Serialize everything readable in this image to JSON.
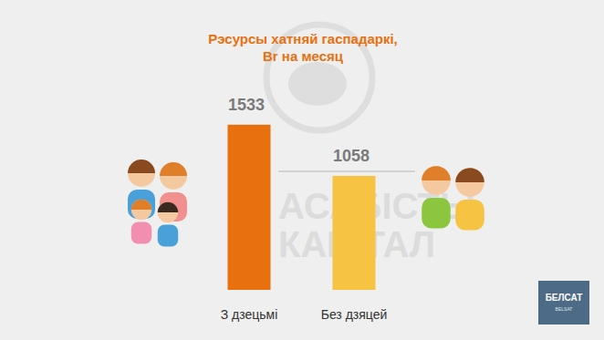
{
  "chart_data": {
    "type": "bar",
    "title": "Рэсурсы хатняй гаспадаркі, Br на месяц",
    "categories": [
      "З дзецьмі",
      "Без дзяцей"
    ],
    "values": [
      1533,
      1058
    ],
    "colors": [
      "#e8700e",
      "#f6c342"
    ],
    "ylim": [
      0,
      1650
    ],
    "data_labels": true,
    "tick_labels": "x",
    "grid": false
  },
  "watermark": "АСАБІСТЫ КАПІТАЛ",
  "logo": "БЕЛСАТ",
  "logo_sub": "BELSAT"
}
